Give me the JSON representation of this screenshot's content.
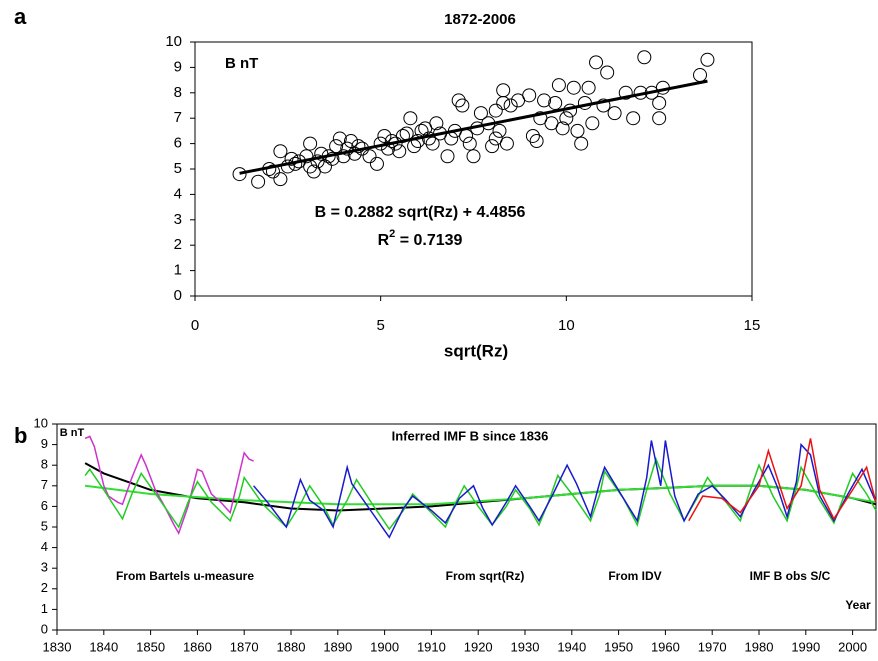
{
  "chart_data": [
    {
      "type": "scatter",
      "panel_label": "a",
      "title": "1872-2006",
      "annotation": "B nT",
      "xlabel": "sqrt(Rz)",
      "equation": "B = 0.2882 sqrt(Rz) + 4.4856",
      "r_squared": {
        "base": "R",
        "sup": "2",
        "text": " = 0.7139"
      },
      "xlim": [
        0,
        15
      ],
      "xticks": [
        0,
        5,
        10,
        15
      ],
      "ylim": [
        0,
        10
      ],
      "yticks": [
        0,
        1,
        2,
        3,
        4,
        5,
        6,
        7,
        8,
        9,
        10
      ],
      "color": "#000000",
      "x": [
        1.2,
        1.7,
        2.0,
        2.1,
        2.3,
        2.3,
        2.5,
        2.6,
        2.7,
        2.8,
        3.0,
        3.1,
        3.1,
        3.2,
        3.3,
        3.4,
        3.5,
        3.6,
        3.7,
        3.8,
        3.9,
        4.0,
        4.1,
        4.2,
        4.3,
        4.4,
        4.5,
        4.7,
        4.9,
        5.0,
        5.1,
        5.2,
        5.3,
        5.4,
        5.5,
        5.6,
        5.7,
        5.8,
        5.9,
        6.0,
        6.1,
        6.2,
        6.3,
        6.4,
        6.5,
        6.6,
        6.8,
        6.9,
        7.0,
        7.1,
        7.2,
        7.3,
        7.4,
        7.5,
        7.6,
        7.7,
        7.9,
        8.0,
        8.1,
        8.1,
        8.2,
        8.3,
        8.3,
        8.4,
        8.5,
        8.7,
        9.0,
        9.1,
        9.2,
        9.3,
        9.4,
        9.6,
        9.7,
        9.8,
        9.9,
        10.0,
        10.1,
        10.2,
        10.3,
        10.4,
        10.5,
        10.6,
        10.7,
        10.8,
        11.0,
        11.1,
        11.3,
        11.6,
        11.8,
        12.0,
        12.1,
        12.3,
        12.5,
        12.5,
        12.6,
        13.6,
        13.8
      ],
      "y": [
        4.8,
        4.5,
        5.0,
        4.9,
        5.7,
        4.6,
        5.1,
        5.4,
        5.2,
        5.3,
        5.5,
        5.1,
        6.0,
        4.9,
        5.3,
        5.6,
        5.1,
        5.5,
        5.4,
        5.9,
        6.2,
        5.5,
        5.8,
        6.1,
        5.6,
        5.9,
        5.8,
        5.5,
        5.2,
        6.0,
        6.3,
        5.8,
        6.1,
        6.0,
        5.7,
        6.3,
        6.4,
        7.0,
        5.9,
        6.1,
        6.5,
        6.6,
        6.2,
        6.0,
        6.8,
        6.4,
        5.5,
        6.2,
        6.5,
        7.7,
        7.5,
        6.3,
        6.0,
        5.5,
        6.6,
        7.2,
        6.8,
        5.9,
        6.2,
        7.3,
        6.5,
        7.6,
        8.1,
        6.0,
        7.5,
        7.7,
        7.9,
        6.3,
        6.1,
        7.0,
        7.7,
        6.8,
        7.6,
        8.3,
        6.6,
        7.0,
        7.3,
        8.2,
        6.5,
        6.0,
        7.6,
        8.2,
        6.8,
        9.2,
        7.5,
        8.8,
        7.2,
        8.0,
        7.0,
        8.0,
        9.4,
        8.0,
        7.6,
        7.0,
        8.2,
        8.7,
        9.3
      ],
      "fit_line": {
        "x": [
          1.2,
          13.8
        ],
        "y": [
          4.83,
          8.46
        ]
      }
    },
    {
      "type": "line",
      "panel_label": "b",
      "title": "Inferred IMF B since 1836",
      "ylabel": "B nT",
      "xlabel": "Year",
      "xlim": [
        1830,
        2005
      ],
      "xticks": [
        1830,
        1840,
        1850,
        1860,
        1870,
        1880,
        1890,
        1900,
        1910,
        1920,
        1930,
        1940,
        1950,
        1960,
        1970,
        1980,
        1990,
        2000
      ],
      "ylim": [
        0,
        10
      ],
      "yticks": [
        0,
        1,
        2,
        3,
        4,
        5,
        6,
        7,
        8,
        9,
        10
      ],
      "series": [
        {
          "color": "#000000",
          "x": [
            1836,
            1840,
            1850,
            1860,
            1870,
            1880,
            1890,
            1900,
            1910,
            1920,
            1930,
            1940,
            1950,
            1960,
            1970,
            1980,
            1990,
            2000,
            2005
          ],
          "values": [
            8.1,
            7.6,
            6.8,
            6.4,
            6.2,
            5.9,
            5.8,
            5.9,
            6.0,
            6.2,
            6.4,
            6.6,
            6.8,
            6.9,
            7.0,
            7.0,
            6.8,
            6.4,
            6.1
          ]
        },
        {
          "color": "#33dd33",
          "x": [
            1836,
            1850,
            1870,
            1890,
            1910,
            1930,
            1950,
            1970,
            1980,
            1990,
            2005
          ],
          "values": [
            7.0,
            6.6,
            6.3,
            6.1,
            6.1,
            6.4,
            6.8,
            7.0,
            7.0,
            6.8,
            6.2
          ]
        },
        {
          "name": "From Bartels u-measure",
          "color": "#cc33cc",
          "x": [
            1836,
            1837,
            1838,
            1840,
            1841,
            1843,
            1844,
            1846,
            1848,
            1849,
            1851,
            1853,
            1855,
            1856,
            1858,
            1860,
            1861,
            1863,
            1865,
            1867,
            1870,
            1871,
            1872
          ],
          "values": [
            9.3,
            9.4,
            8.9,
            7.0,
            6.5,
            6.2,
            6.1,
            7.4,
            8.5,
            8.0,
            6.8,
            6.0,
            5.1,
            4.7,
            6.0,
            7.8,
            7.7,
            6.6,
            6.2,
            5.7,
            8.6,
            8.3,
            8.2
          ]
        },
        {
          "name": "From sqrt(Rz)",
          "color": "#22cc22",
          "x": [
            1836,
            1837,
            1840,
            1844,
            1846,
            1848,
            1852,
            1856,
            1858,
            1860,
            1863,
            1867,
            1869,
            1870,
            1874,
            1879,
            1882,
            1884,
            1887,
            1889,
            1892,
            1894,
            1898,
            1901,
            1904,
            1906,
            1910,
            1913,
            1915,
            1917,
            1920,
            1923,
            1926,
            1928,
            1931,
            1933,
            1935,
            1937,
            1941,
            1944,
            1946,
            1947,
            1951,
            1954,
            1956,
            1958,
            1961,
            1964,
            1967,
            1969,
            1973,
            1976,
            1978,
            1980,
            1983,
            1986,
            1988,
            1989,
            1993,
            1996,
            1998,
            2000,
            2003,
            2005
          ],
          "values": [
            7.5,
            7.8,
            6.8,
            5.4,
            6.6,
            7.6,
            6.3,
            5.0,
            6.2,
            7.2,
            6.2,
            5.3,
            6.5,
            7.4,
            6.1,
            5.0,
            6.1,
            7.0,
            6.0,
            5.1,
            6.3,
            7.3,
            5.9,
            4.9,
            5.8,
            6.6,
            5.7,
            5.0,
            6.1,
            7.0,
            6.0,
            5.1,
            6.0,
            6.8,
            5.9,
            5.1,
            6.2,
            7.5,
            6.3,
            5.3,
            6.6,
            7.7,
            6.4,
            5.1,
            6.8,
            8.3,
            6.6,
            5.3,
            6.5,
            7.4,
            6.2,
            5.3,
            6.7,
            8.0,
            6.5,
            5.3,
            6.9,
            7.9,
            6.3,
            5.2,
            6.4,
            7.6,
            6.6,
            5.8
          ]
        },
        {
          "name": "From IDV",
          "color": "#1a1acc",
          "x": [
            1872,
            1875,
            1879,
            1882,
            1884,
            1887,
            1889,
            1892,
            1893,
            1897,
            1901,
            1904,
            1906,
            1910,
            1913,
            1916,
            1919,
            1921,
            1923,
            1926,
            1928,
            1931,
            1933,
            1936,
            1939,
            1941,
            1944,
            1946,
            1947,
            1951,
            1954,
            1956,
            1957,
            1959,
            1960,
            1962,
            1964,
            1967,
            1970,
            1973,
            1976,
            1979,
            1982,
            1984,
            1986,
            1988,
            1989,
            1991,
            1993,
            1996,
            1999,
            2002,
            2005
          ],
          "values": [
            7.0,
            6.2,
            5.0,
            7.3,
            6.3,
            5.8,
            5.0,
            7.9,
            7.1,
            5.8,
            4.5,
            5.9,
            6.5,
            5.8,
            5.2,
            6.4,
            7.0,
            5.9,
            5.1,
            6.2,
            7.0,
            6.0,
            5.3,
            6.6,
            8.0,
            7.1,
            5.5,
            7.2,
            7.9,
            6.4,
            5.3,
            7.4,
            9.2,
            7.0,
            9.2,
            6.5,
            5.3,
            6.6,
            7.0,
            6.3,
            5.5,
            6.8,
            8.0,
            6.9,
            5.5,
            7.2,
            9.0,
            8.5,
            6.5,
            5.3,
            6.6,
            7.8,
            6.2
          ]
        },
        {
          "name": "IMF B obs S/C",
          "color": "#ee1111",
          "x": [
            1965,
            1968,
            1972,
            1976,
            1980,
            1982,
            1984,
            1986,
            1989,
            1991,
            1993,
            1996,
            2000,
            2003,
            2005
          ],
          "values": [
            5.3,
            6.5,
            6.4,
            5.7,
            7.0,
            8.7,
            7.3,
            5.9,
            7.0,
            9.3,
            6.8,
            5.4,
            6.8,
            7.9,
            6.2
          ]
        }
      ]
    }
  ]
}
